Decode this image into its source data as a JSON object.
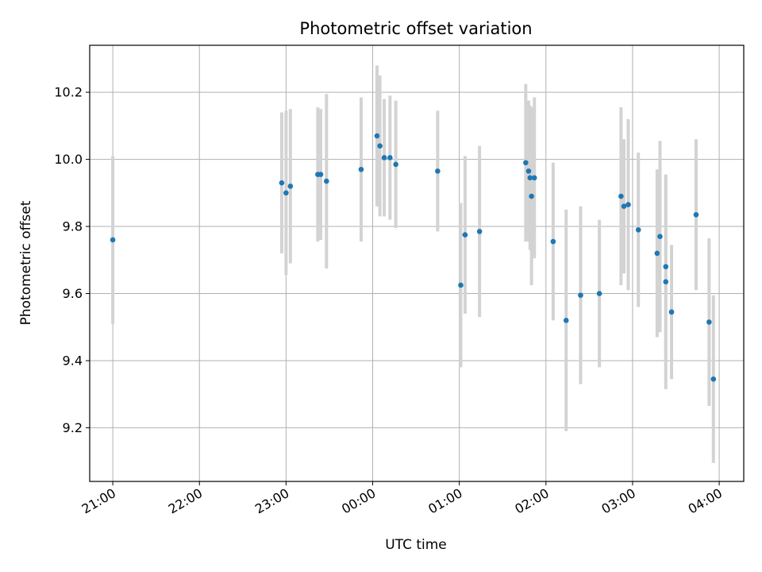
{
  "chart_data": {
    "type": "scatter",
    "title": "Photometric offset variation",
    "xlabel": "UTC time",
    "ylabel": "Photometric offset",
    "xlim": [
      "2023-01-01T20:44",
      "2023-01-02T04:17"
    ],
    "ylim": [
      9.04,
      10.34
    ],
    "x_ticks": [
      "2023-01-01T21:00",
      "2023-01-01T22:00",
      "2023-01-01T23:00",
      "2023-01-02T00:00",
      "2023-01-02T01:00",
      "2023-01-02T02:00",
      "2023-01-02T03:00",
      "2023-01-02T04:00"
    ],
    "x_tick_labels": [
      "21:00",
      "22:00",
      "23:00",
      "00:00",
      "01:00",
      "02:00",
      "03:00",
      "04:00"
    ],
    "y_ticks": [
      9.2,
      9.4,
      9.6,
      9.8,
      10.0,
      10.2
    ],
    "y_tick_labels": [
      "9.2",
      "9.4",
      "9.6",
      "9.8",
      "10.0",
      "10.2"
    ],
    "grid": true,
    "colors": {
      "point": "#1f77b4",
      "errorbar": "#d3d3d3",
      "grid": "#b0b0b0"
    },
    "series": [
      {
        "points": [
          {
            "x": "2023-01-01T21:00",
            "y": 9.76,
            "err": 0.25
          },
          {
            "x": "2023-01-01T22:57",
            "y": 9.93,
            "err": 0.21
          },
          {
            "x": "2023-01-01T23:00",
            "y": 9.9,
            "err": 0.245
          },
          {
            "x": "2023-01-01T23:03",
            "y": 9.92,
            "err": 0.23
          },
          {
            "x": "2023-01-01T23:22",
            "y": 9.955,
            "err": 0.2
          },
          {
            "x": "2023-01-01T23:24",
            "y": 9.955,
            "err": 0.195
          },
          {
            "x": "2023-01-01T23:28",
            "y": 9.935,
            "err": 0.26
          },
          {
            "x": "2023-01-01T23:52",
            "y": 9.97,
            "err": 0.215
          },
          {
            "x": "2023-01-02T00:03",
            "y": 10.07,
            "err": 0.21
          },
          {
            "x": "2023-01-02T00:05",
            "y": 10.04,
            "err": 0.21
          },
          {
            "x": "2023-01-02T00:08",
            "y": 10.005,
            "err": 0.175
          },
          {
            "x": "2023-01-02T00:12",
            "y": 10.005,
            "err": 0.185
          },
          {
            "x": "2023-01-02T00:16",
            "y": 9.985,
            "err": 0.19
          },
          {
            "x": "2023-01-02T00:45",
            "y": 9.965,
            "err": 0.18
          },
          {
            "x": "2023-01-02T01:01",
            "y": 9.625,
            "err": 0.245
          },
          {
            "x": "2023-01-02T01:04",
            "y": 9.775,
            "err": 0.235
          },
          {
            "x": "2023-01-02T01:14",
            "y": 9.785,
            "err": 0.255
          },
          {
            "x": "2023-01-02T01:46",
            "y": 9.99,
            "err": 0.235
          },
          {
            "x": "2023-01-02T01:48",
            "y": 9.965,
            "err": 0.21
          },
          {
            "x": "2023-01-02T01:49",
            "y": 9.945,
            "err": 0.215
          },
          {
            "x": "2023-01-02T01:50",
            "y": 9.89,
            "err": 0.265
          },
          {
            "x": "2023-01-02T01:52",
            "y": 9.945,
            "err": 0.24
          },
          {
            "x": "2023-01-02T02:05",
            "y": 9.755,
            "err": 0.235
          },
          {
            "x": "2023-01-02T02:14",
            "y": 9.52,
            "err": 0.33
          },
          {
            "x": "2023-01-02T02:24",
            "y": 9.595,
            "err": 0.265
          },
          {
            "x": "2023-01-02T02:37",
            "y": 9.6,
            "err": 0.22
          },
          {
            "x": "2023-01-02T02:52",
            "y": 9.89,
            "err": 0.265
          },
          {
            "x": "2023-01-02T02:54",
            "y": 9.86,
            "err": 0.2
          },
          {
            "x": "2023-01-02T02:57",
            "y": 9.865,
            "err": 0.255
          },
          {
            "x": "2023-01-02T03:04",
            "y": 9.79,
            "err": 0.23
          },
          {
            "x": "2023-01-02T03:17",
            "y": 9.72,
            "err": 0.25
          },
          {
            "x": "2023-01-02T03:19",
            "y": 9.77,
            "err": 0.285
          },
          {
            "x": "2023-01-02T03:23",
            "y": 9.68,
            "err": 0.27
          },
          {
            "x": "2023-01-02T03:23",
            "y": 9.635,
            "err": 0.32
          },
          {
            "x": "2023-01-02T03:27",
            "y": 9.545,
            "err": 0.2
          },
          {
            "x": "2023-01-02T03:44",
            "y": 9.835,
            "err": 0.225
          },
          {
            "x": "2023-01-02T03:53",
            "y": 9.515,
            "err": 0.25
          },
          {
            "x": "2023-01-02T03:56",
            "y": 9.345,
            "err": 0.25
          }
        ]
      }
    ]
  }
}
